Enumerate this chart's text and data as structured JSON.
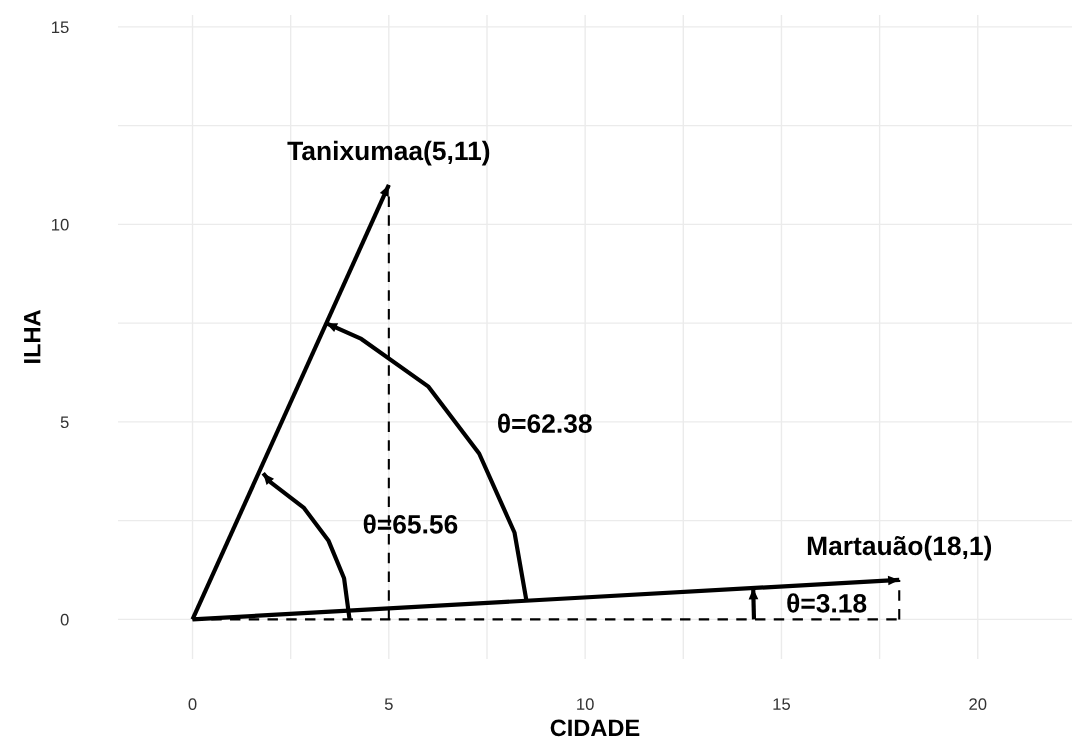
{
  "chart_data": {
    "type": "line",
    "xlabel": "CIDADE",
    "ylabel": "ILHA",
    "xlim": [
      -1.9,
      22.4
    ],
    "ylim": [
      -1.0,
      15.3
    ],
    "xticks": [
      0,
      {
        "value": 2.5,
        "label": null
      },
      5,
      {
        "value": 7.5,
        "label": null
      },
      10,
      {
        "value": 12.5,
        "label": null
      },
      15,
      {
        "value": 17.5,
        "label": null
      },
      20
    ],
    "yticks": [
      0,
      {
        "value": 2.5,
        "label": null
      },
      5,
      {
        "value": 7.5,
        "label": null
      },
      10,
      {
        "value": 12.5,
        "label": null
      },
      15
    ],
    "grid": true,
    "marker": "none",
    "series": [
      {
        "name": "Tanixumaa(5,11)",
        "color": "#000000",
        "line_style": "solid",
        "x": [
          0,
          5
        ],
        "values": [
          0,
          11
        ]
      },
      {
        "name": "Martauão(18,1)",
        "color": "#000000",
        "line_style": "solid",
        "x": [
          0,
          18
        ],
        "values": [
          0,
          1
        ]
      },
      {
        "color": "#000000",
        "line_style": "dashed",
        "x": [
          5,
          5
        ],
        "values": [
          0,
          11
        ]
      },
      {
        "color": "#000000",
        "line_style": "dashed",
        "x": [
          0,
          18
        ],
        "values": [
          0,
          0
        ]
      },
      {
        "color": "#000000",
        "line_style": "dashed",
        "x": [
          18,
          18
        ],
        "values": [
          0,
          1
        ]
      },
      {
        "color": "#000000",
        "line_style": "solid",
        "x": [
          4,
          3.86,
          3.46,
          2.83,
          2.0,
          1.8
        ],
        "values": [
          0,
          1.04,
          2.0,
          2.83,
          3.46,
          3.7
        ]
      },
      {
        "color": "#000000",
        "line_style": "solid",
        "x": [
          8.5,
          8.2,
          7.3,
          6.0,
          4.3,
          3.4
        ],
        "values": [
          0.5,
          2.2,
          4.2,
          5.9,
          7.1,
          7.5
        ]
      },
      {
        "color": "#000000",
        "line_style": "solid",
        "x": [
          14.3,
          14.28
        ],
        "values": [
          0,
          0.79
        ]
      }
    ],
    "annotations": [
      "θ=65.56",
      "θ=62.38",
      "θ=3.18"
    ]
  }
}
